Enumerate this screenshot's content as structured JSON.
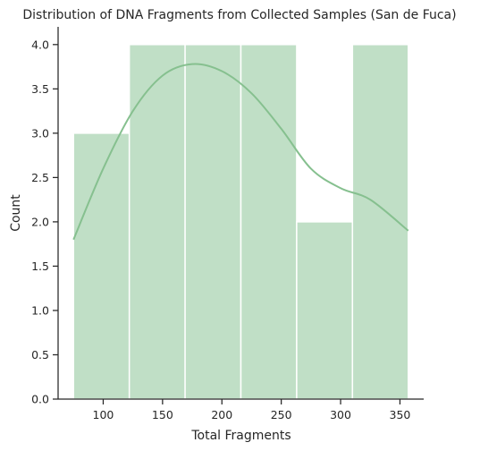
{
  "chart_data": {
    "type": "bar",
    "subtype": "histogram-with-kde",
    "title": "Distribution of DNA Fragments from Collected Samples (San de Fuca)",
    "xlabel": "Total Fragments",
    "ylabel": "Count",
    "bins": [
      {
        "start": 75,
        "end": 122,
        "count": 3
      },
      {
        "start": 122,
        "end": 169,
        "count": 4
      },
      {
        "start": 169,
        "end": 216,
        "count": 4
      },
      {
        "start": 216,
        "end": 263,
        "count": 4
      },
      {
        "start": 263,
        "end": 310,
        "count": 2
      },
      {
        "start": 310,
        "end": 357,
        "count": 4
      }
    ],
    "kde": {
      "x": [
        75,
        100,
        125,
        150,
        175,
        200,
        225,
        250,
        275,
        300,
        325,
        357
      ],
      "y": [
        1.8,
        2.6,
        3.25,
        3.65,
        3.78,
        3.7,
        3.45,
        3.05,
        2.6,
        2.38,
        2.25,
        1.9
      ]
    },
    "xlim": [
      62,
      370
    ],
    "ylim": [
      0,
      4.2
    ],
    "xticks": [
      100,
      150,
      200,
      250,
      300,
      350
    ],
    "yticks": [
      0.0,
      0.5,
      1.0,
      1.5,
      2.0,
      2.5,
      3.0,
      3.5,
      4.0
    ],
    "xtick_labels": [
      "100",
      "150",
      "200",
      "250",
      "300",
      "350"
    ],
    "ytick_labels": [
      "0.0",
      "0.5",
      "1.0",
      "1.5",
      "2.0",
      "2.5",
      "3.0",
      "3.5",
      "4.0"
    ],
    "bar_color": "#c0dfc6",
    "line_color": "#86c08f",
    "grid": false
  }
}
